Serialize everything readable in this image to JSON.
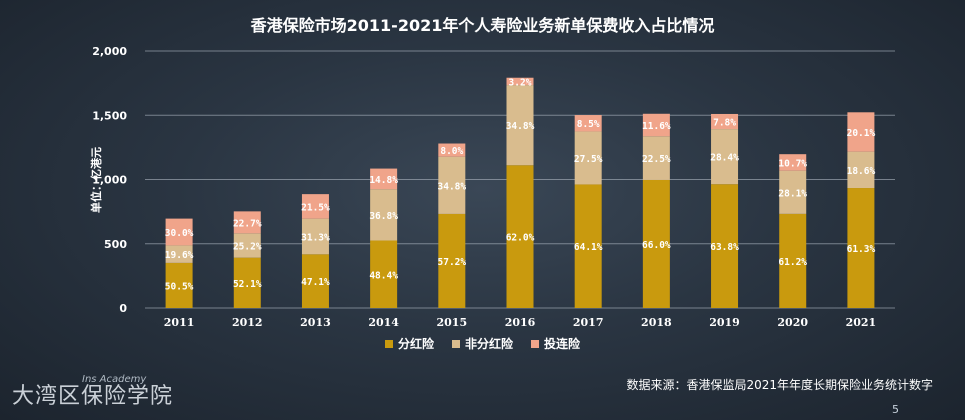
{
  "title": "香港保险市场2011-2021年个人寿险业务新单保费收入占比情况",
  "ylabel": "单位：亿港元",
  "legend": [
    "分红险",
    "非分红险",
    "投连险"
  ],
  "source": "数据来源：香港保监局2021年年度长期保险业务统计数字",
  "logo": {
    "main": "大湾区保险学院",
    "sub": "Ins Academy"
  },
  "page_number": "5",
  "colors": {
    "dividend": "#c99a0e",
    "non_dividend": "#d9bc8e",
    "unit_linked": "#f0a48a",
    "grid": "#aeb7c2",
    "label": "#ffffff"
  },
  "chart_data": {
    "type": "bar",
    "stacked": true,
    "title": "香港保险市场2011-2021年个人寿险业务新单保费收入占比情况",
    "ylabel": "单位：亿港元",
    "ylim": [
      0,
      2000
    ],
    "yticks": [
      "0",
      "500",
      "1,000",
      "1,500",
      "2,000"
    ],
    "ytick_values": [
      0,
      500,
      1000,
      1500,
      2000
    ],
    "categories": [
      "2011",
      "2012",
      "2013",
      "2014",
      "2015",
      "2016",
      "2017",
      "2018",
      "2019",
      "2020",
      "2021"
    ],
    "totals": [
      695,
      752,
      887,
      1085,
      1280,
      1792,
      1500,
      1510,
      1510,
      1197,
      1523
    ],
    "series": [
      {
        "name": "分红险",
        "percent": [
          50.5,
          52.1,
          47.1,
          48.4,
          57.2,
          62.0,
          64.1,
          66.0,
          63.8,
          61.2,
          61.3
        ],
        "labels": [
          "50.5%",
          "52.1%",
          "47.1%",
          "48.4%",
          "57.2%",
          "62.0%",
          "64.1%",
          "66.0%",
          "63.8%",
          "61.2%",
          "61.3%"
        ]
      },
      {
        "name": "非分红险",
        "percent": [
          19.6,
          25.2,
          31.3,
          36.8,
          34.8,
          34.8,
          27.5,
          22.5,
          28.4,
          28.1,
          18.6
        ],
        "labels": [
          "19.6%",
          "25.2%",
          "31.3%",
          "36.8%",
          "34.8%",
          "34.8%",
          "27.5%",
          "22.5%",
          "28.4%",
          "28.1%",
          "18.6%"
        ]
      },
      {
        "name": "投连险",
        "percent": [
          30.0,
          22.7,
          21.5,
          14.8,
          8.0,
          3.2,
          8.5,
          11.6,
          7.8,
          10.7,
          20.1
        ],
        "labels": [
          "30.0%",
          "22.7%",
          "21.5%",
          "14.8%",
          "8.0%",
          "3.2%",
          "8.5%",
          "11.6%",
          "7.8%",
          "10.7%",
          "20.1%"
        ]
      }
    ],
    "grid": true,
    "legend_position": "bottom"
  }
}
